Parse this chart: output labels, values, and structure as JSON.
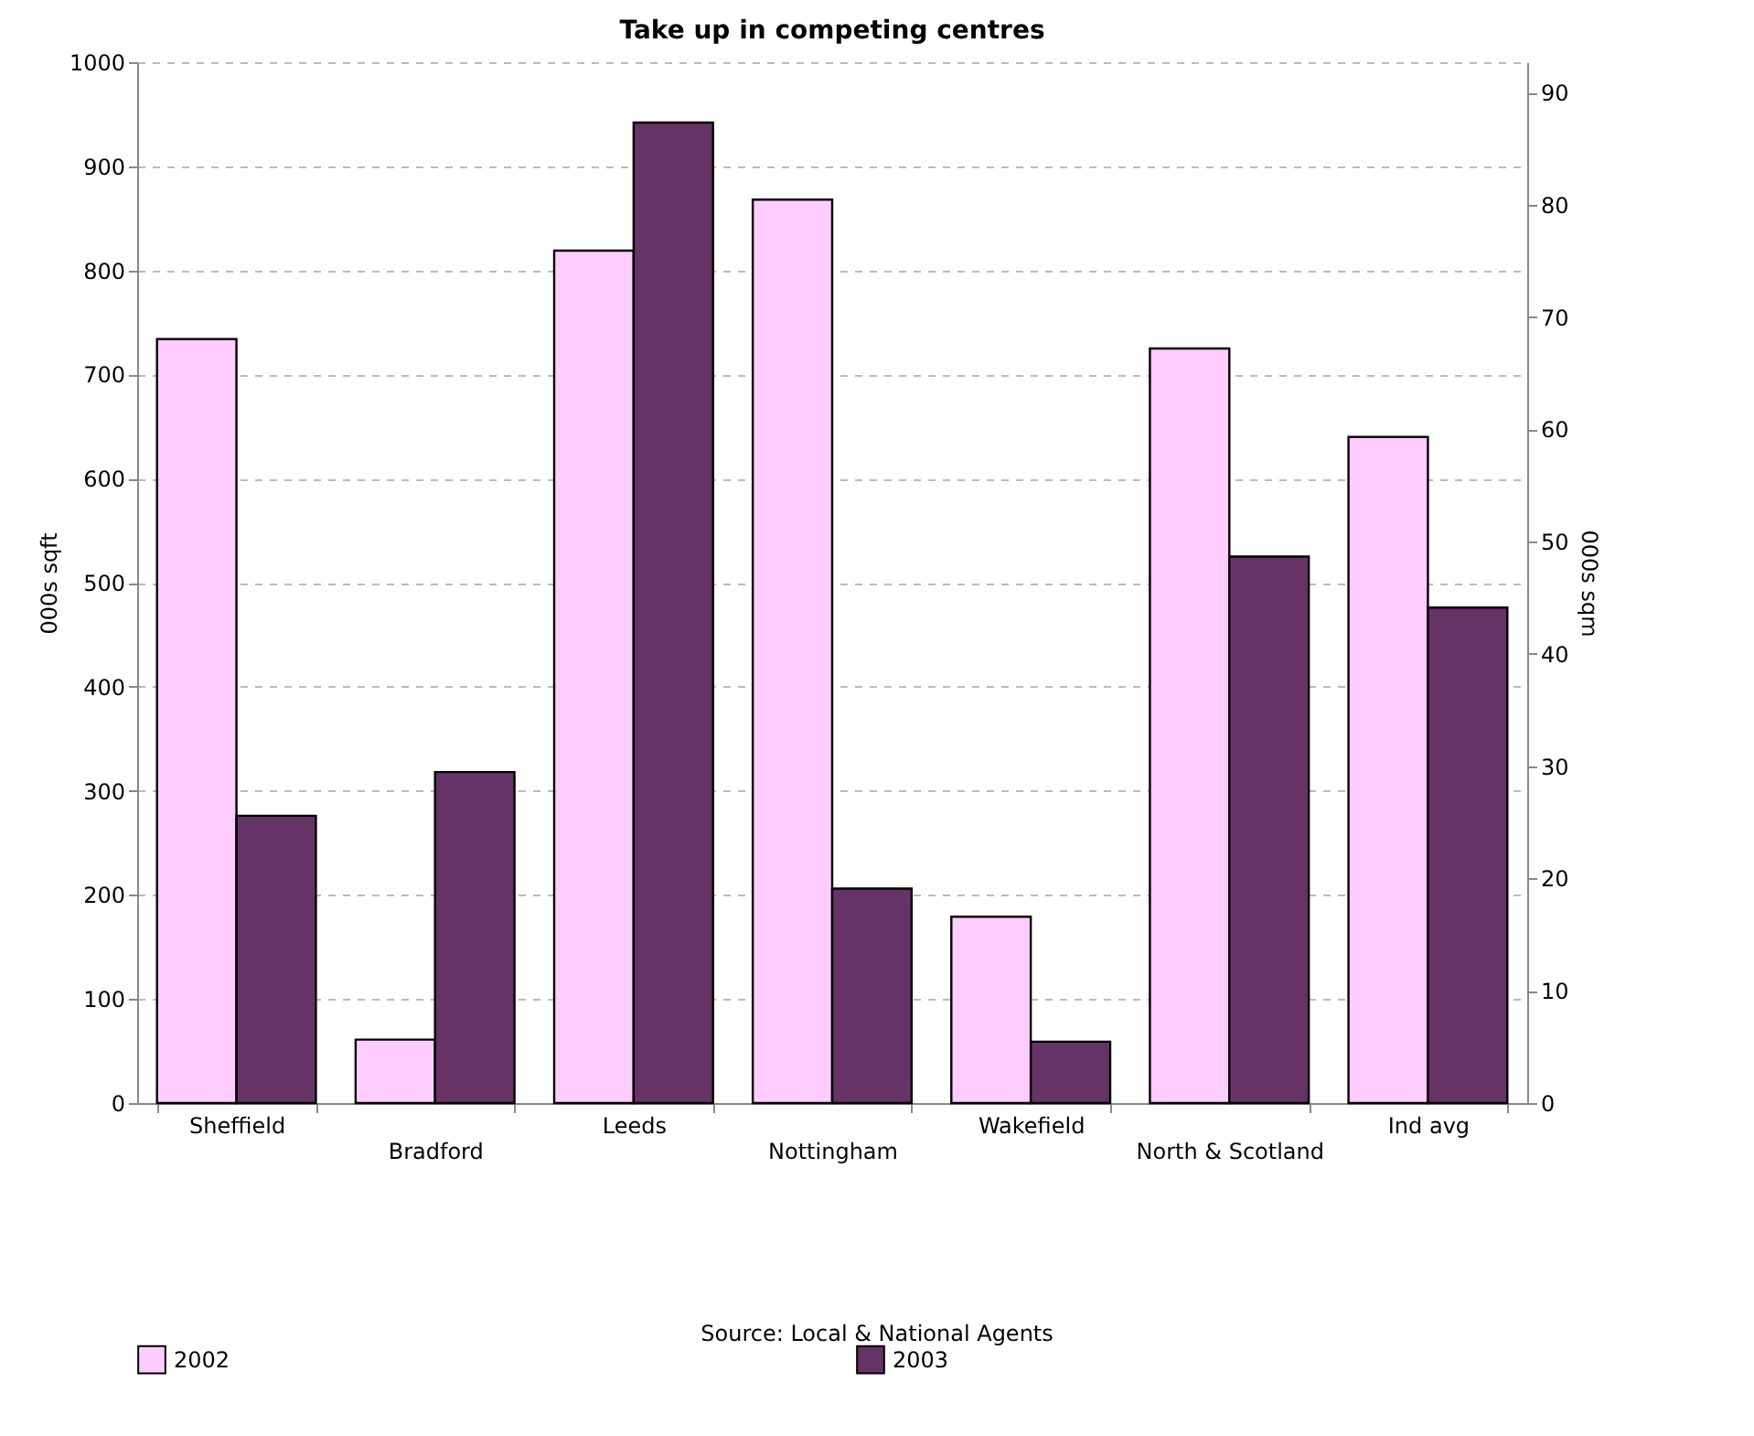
{
  "chart_data": {
    "type": "bar",
    "title": "Take up in competing centres",
    "categories": [
      "Sheffield",
      "Bradford",
      "Leeds",
      "Nottingham",
      "Wakefield",
      "North & Scotland",
      "Ind avg"
    ],
    "series": [
      {
        "name": "2002",
        "color": "#ffccff",
        "values": [
          734,
          61,
          819,
          868,
          179,
          725,
          640
        ]
      },
      {
        "name": "2003",
        "color": "#663366",
        "values": [
          276,
          318,
          942,
          206,
          59,
          525,
          476
        ]
      }
    ],
    "ylabel": "000s sqft",
    "y2label": "000s sqm",
    "ylim": [
      0,
      1000
    ],
    "yticks": [
      0,
      100,
      200,
      300,
      400,
      500,
      600,
      700,
      800,
      900,
      1000
    ],
    "y2lim": [
      0,
      92.7
    ],
    "y2ticks": [
      0,
      10,
      20,
      30,
      40,
      50,
      60,
      70,
      80,
      90
    ],
    "grid": "y",
    "legend": "bottom",
    "annotations": [
      "Source: Local & National Agents"
    ]
  }
}
